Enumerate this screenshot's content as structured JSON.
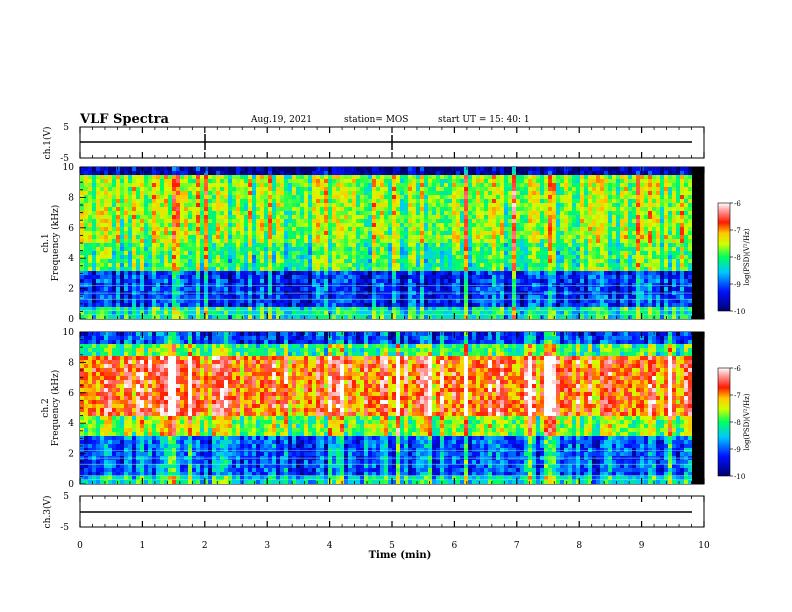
{
  "header": {
    "title": "VLF Spectra",
    "date": "Aug.19, 2021",
    "station": "station= MOS",
    "start": "start  UT =   15: 40: 1"
  },
  "chart_data": [
    {
      "type": "line",
      "panel": "ch.1 waveform",
      "ylabel": "ch.1(V)",
      "ylim": [
        -5,
        5
      ],
      "yticks": [
        5,
        -5
      ],
      "series": [
        {
          "values": [
            0
          ]
        }
      ]
    },
    {
      "type": "heatmap",
      "panel": "ch.1 spectrogram",
      "ylabel_top": "ch.1",
      "ylabel": "Frequency  (kHz)",
      "ylim": [
        0,
        10
      ],
      "yticks": [
        0,
        2,
        4,
        6,
        8,
        10
      ],
      "xlim": [
        0,
        10
      ],
      "colorbar": {
        "label": "log(PSD)(V²/Hz)",
        "range": [
          -10,
          -6
        ],
        "ticks": [
          "-6",
          "-7",
          "-8",
          "-9",
          "-10"
        ]
      }
    },
    {
      "type": "heatmap",
      "panel": "ch.2 spectrogram",
      "ylabel_top": "ch.2",
      "ylabel": "Frequency  (kHz)",
      "ylim": [
        0,
        10
      ],
      "yticks": [
        0,
        2,
        4,
        6,
        8,
        10
      ],
      "xlim": [
        0,
        10
      ],
      "colorbar": {
        "label": "log(PSD)(V²/Hz)",
        "range": [
          -10,
          -6
        ],
        "ticks": [
          "-6",
          "-7",
          "-8",
          "-9",
          "-10"
        ]
      }
    },
    {
      "type": "line",
      "panel": "ch.3 waveform",
      "ylabel": "ch.3(V)",
      "ylim": [
        -5,
        5
      ],
      "yticks": [
        5,
        -5
      ],
      "series": [
        {
          "values": [
            0
          ]
        }
      ]
    }
  ],
  "xaxis": {
    "label": "Time  (min)",
    "ticks": [
      "0",
      "1",
      "2",
      "3",
      "4",
      "5",
      "6",
      "7",
      "8",
      "9",
      "10"
    ],
    "range": [
      0,
      10
    ]
  },
  "colors": {
    "colormap": [
      "#000080",
      "#0000ff",
      "#00c8ff",
      "#00ff80",
      "#c8ff00",
      "#ffd000",
      "#ff2000",
      "#ff8080",
      "#ffffff"
    ]
  }
}
